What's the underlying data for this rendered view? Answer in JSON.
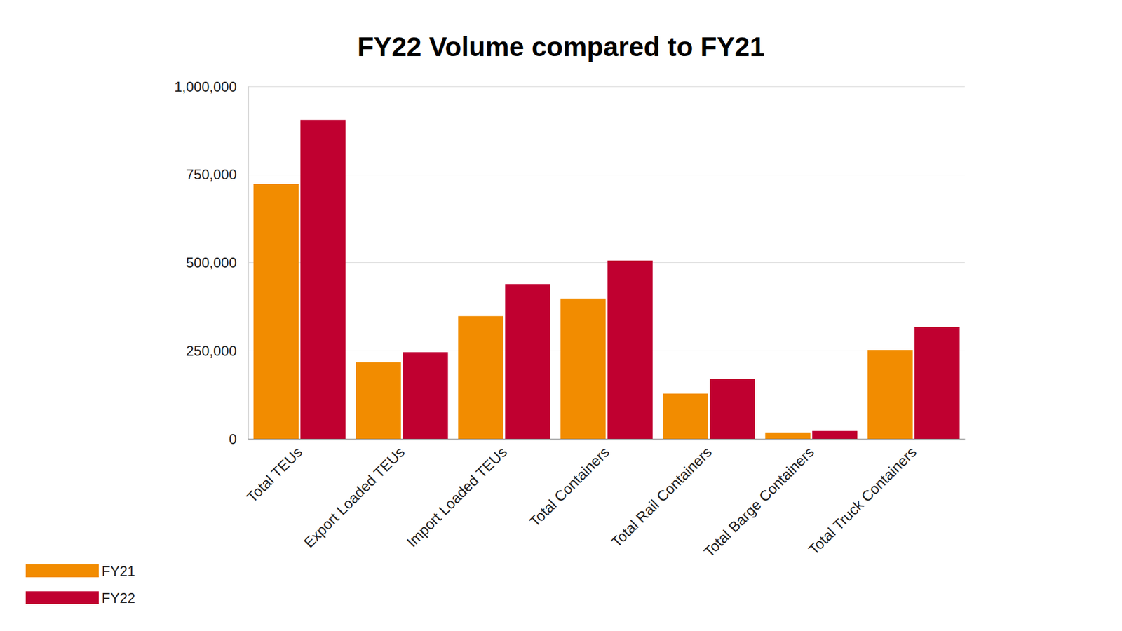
{
  "chart_data": {
    "type": "bar",
    "title": "FY22 Volume compared to FY21",
    "categories": [
      "Total TEUs",
      "Export Loaded TEUs",
      "Import Loaded TEUs",
      "Total Containers",
      "Total Rail Containers",
      "Total Barge Containers",
      "Total Truck Containers"
    ],
    "series": [
      {
        "name": "FY21",
        "color": "#f28c00",
        "values": [
          723000,
          217000,
          348000,
          398000,
          128000,
          18000,
          252000
        ]
      },
      {
        "name": "FY22",
        "color": "#c00030",
        "values": [
          905000,
          246000,
          439000,
          506000,
          169000,
          22000,
          317000
        ]
      }
    ],
    "ylim": [
      0,
      1000000
    ],
    "yticks": [
      0,
      {
        "value": 250000,
        "label": "250,000"
      },
      {
        "value": 500000,
        "label": "500,000"
      },
      {
        "value": 750000,
        "label": "750,000"
      },
      {
        "value": 1000000,
        "label": "1,000,000"
      }
    ],
    "grid": true,
    "legend": "bottom-left"
  }
}
